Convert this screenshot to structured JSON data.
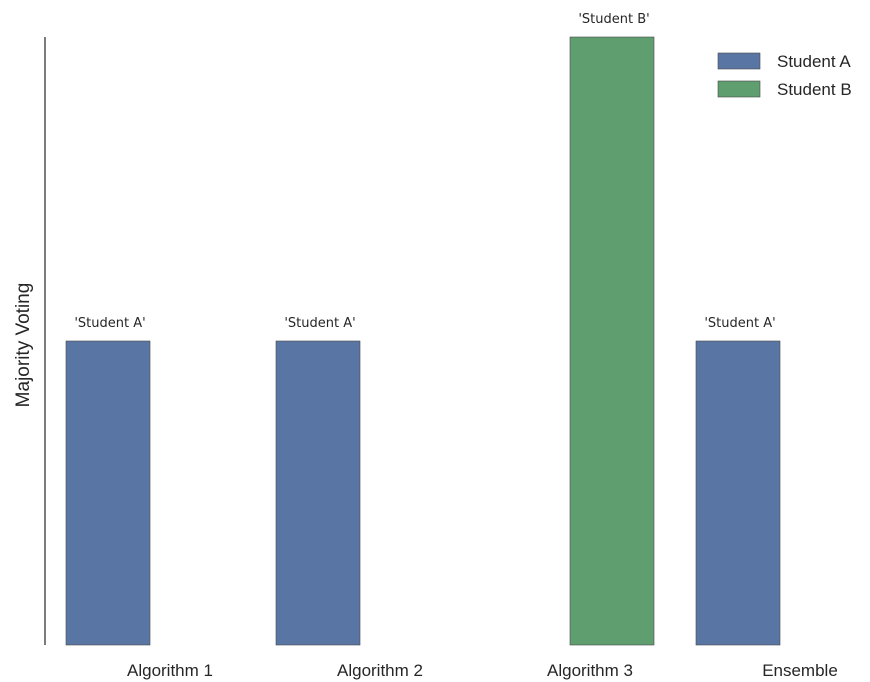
{
  "chart_data": {
    "type": "bar",
    "title": "",
    "xlabel": "",
    "ylabel": "Majority Voting",
    "categories": [
      "Algorithm 1",
      "Algorithm 2",
      "Algorithm 3",
      "Ensemble"
    ],
    "series": [
      {
        "name": "Student A",
        "color": "#5975a4",
        "values": [
          1,
          1,
          0,
          1
        ]
      },
      {
        "name": "Student B",
        "color": "#5f9e6e",
        "values": [
          0,
          0,
          2,
          0
        ]
      }
    ],
    "bar_labels": [
      "'Student A'",
      "'Student A'",
      "'Student B'",
      "'Student A'"
    ],
    "ylim": [
      0,
      2
    ],
    "grid": false,
    "legend_position": "top-right"
  }
}
